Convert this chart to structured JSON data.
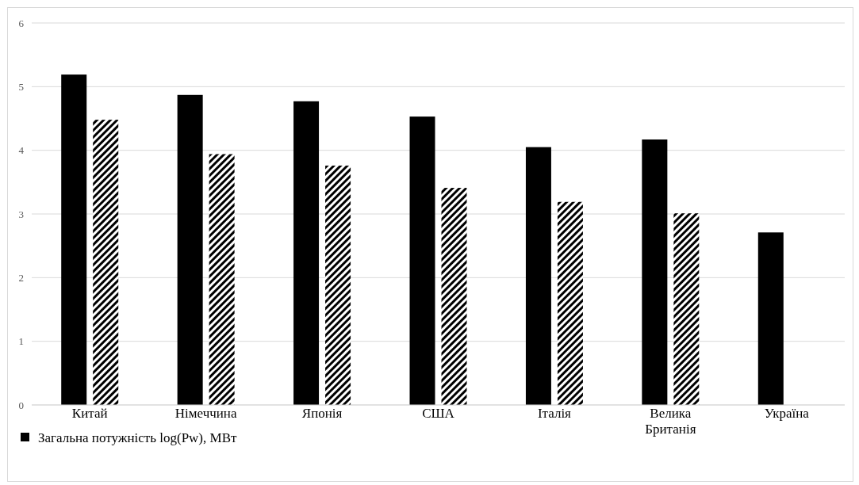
{
  "chart_data": {
    "type": "bar",
    "categories": [
      "Китай",
      "Німеччина",
      "Японія",
      "США",
      "Італія",
      "Велика Британія",
      "Україна"
    ],
    "series": [
      {
        "name": "Загальна потужність log(Pw), МВт",
        "color": "#000000",
        "values": [
          5.19,
          4.87,
          4.77,
          4.53,
          4.05,
          4.17,
          2.71
        ]
      },
      {
        "color": "#000000",
        "values": [
          4.48,
          3.94,
          3.76,
          3.41,
          3.19,
          3.01,
          null
        ]
      }
    ],
    "ylim": [
      0,
      6
    ],
    "yticks": [
      0,
      1,
      2,
      3,
      4,
      5,
      6
    ],
    "grid": "y",
    "legend": "bottom left"
  }
}
